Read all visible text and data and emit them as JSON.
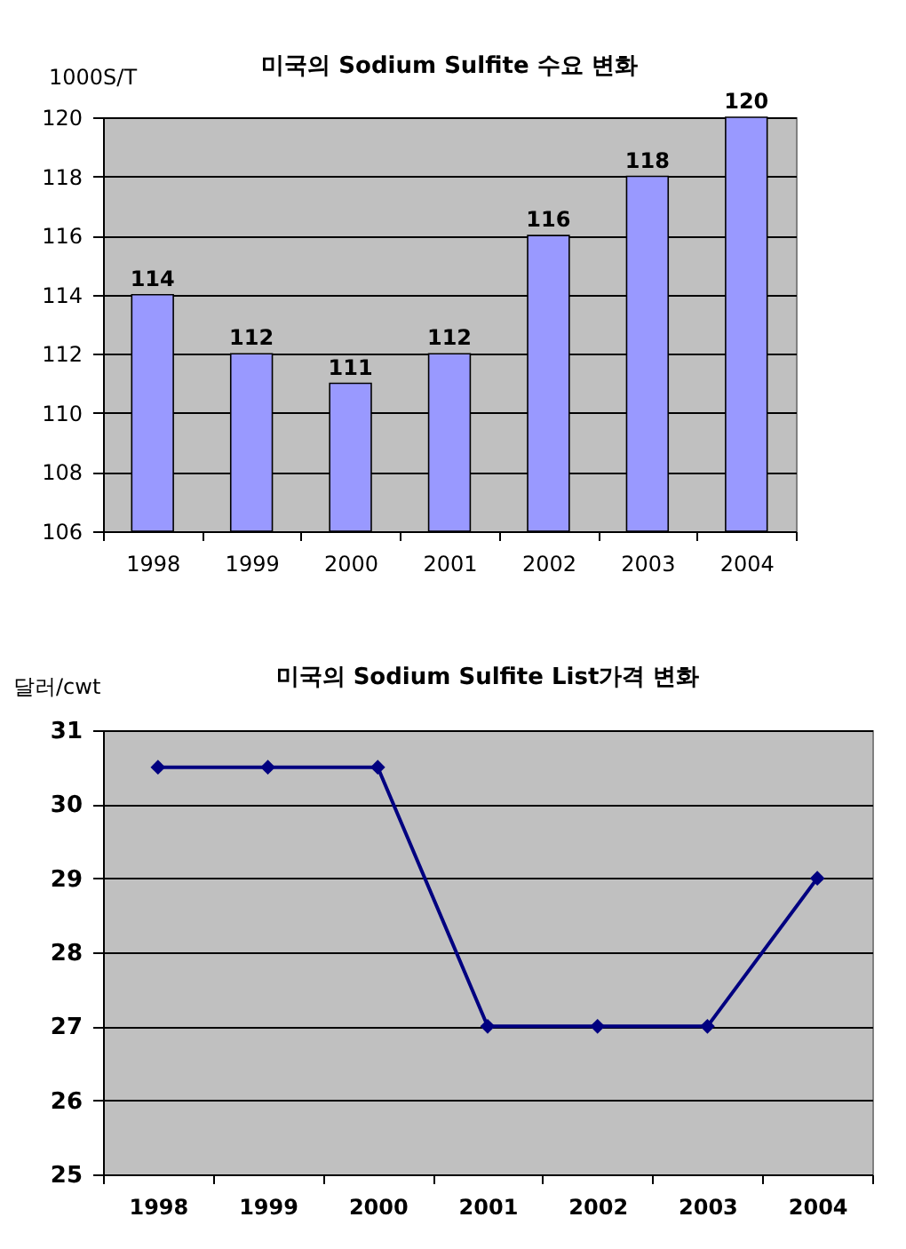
{
  "chart_data": [
    {
      "type": "bar",
      "title": "미국의 Sodium Sulfite 수요 변화",
      "ylabel": "1000S/T",
      "categories": [
        "1998",
        "1999",
        "2000",
        "2001",
        "2002",
        "2003",
        "2004"
      ],
      "values": [
        114,
        112,
        111,
        112,
        116,
        118,
        120
      ],
      "color": "#9999ff",
      "ylim": [
        106,
        120
      ],
      "yticks": [
        106,
        108,
        110,
        112,
        114,
        116,
        118,
        120
      ],
      "grid": "y",
      "data_labels": true
    },
    {
      "type": "line",
      "title": "미국의 Sodium Sulfite List가격 변화",
      "ylabel": "달러/cwt",
      "categories": [
        "1998",
        "1999",
        "2000",
        "2001",
        "2002",
        "2003",
        "2004"
      ],
      "values": [
        30.5,
        30.5,
        30.5,
        27,
        27,
        27,
        29
      ],
      "color": "#000080",
      "ylim": [
        25,
        31
      ],
      "yticks": [
        25,
        26,
        27,
        28,
        29,
        30,
        31
      ],
      "grid": "y",
      "marker": "diamond"
    }
  ]
}
